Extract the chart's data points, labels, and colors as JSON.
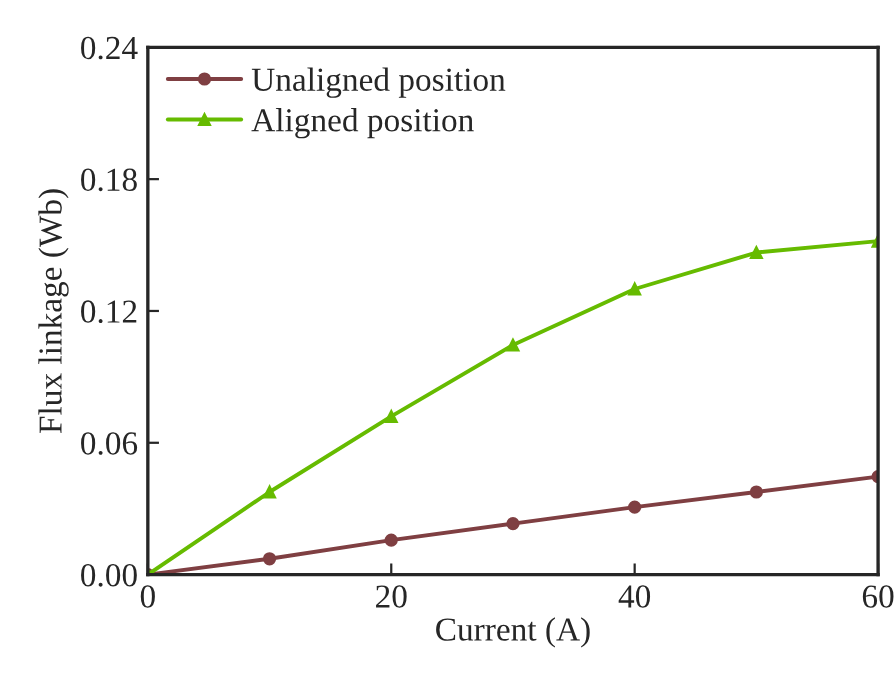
{
  "chart_data": {
    "type": "line",
    "xlabel": "Current (A)",
    "ylabel": "Flux linkage (Wb)",
    "x": [
      0,
      10,
      20,
      30,
      40,
      50,
      60
    ],
    "series": [
      {
        "name": "Unaligned position",
        "color": "#7f3f42",
        "marker": "circle",
        "values": [
          0,
          0.0072,
          0.0157,
          0.0232,
          0.0307,
          0.0376,
          0.0446
        ]
      },
      {
        "name": "Aligned position",
        "color": "#66bb00",
        "marker": "triangle",
        "values": [
          0,
          0.0376,
          0.072,
          0.1045,
          0.13,
          0.1466,
          0.1518
        ]
      }
    ],
    "xlim": [
      0,
      60
    ],
    "xticks": [
      0,
      20,
      40,
      60
    ],
    "ylim": [
      0,
      0.24
    ],
    "yticks": [
      {
        "value": 0,
        "label": "0.00"
      },
      {
        "value": 0.06,
        "label": "0.06"
      },
      {
        "value": 0.12,
        "label": "0.12"
      },
      {
        "value": 0.18,
        "label": "0.18"
      },
      {
        "value": 0.24,
        "label": "0.24"
      }
    ],
    "grid": false,
    "legend": "top left",
    "line_style": "solid"
  }
}
